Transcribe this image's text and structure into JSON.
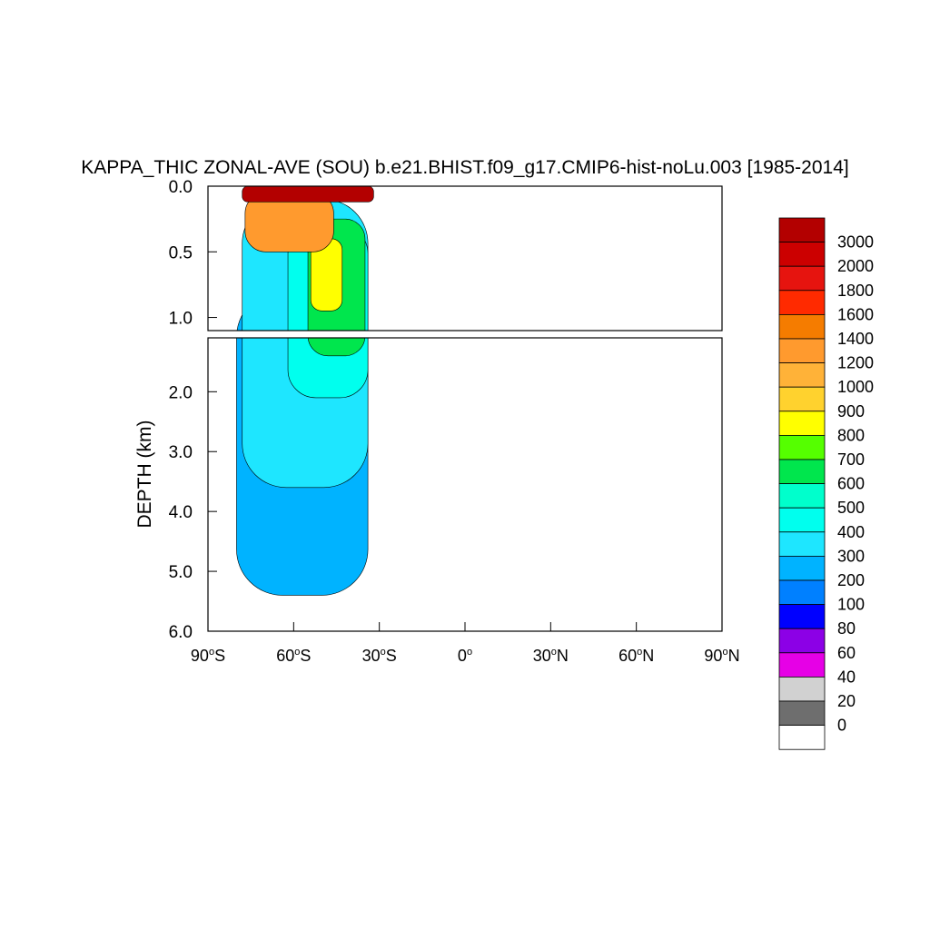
{
  "chart_data": {
    "type": "heatmap",
    "title": "KAPPA_THIC ZONAL-AVE (SOU) b.e21.BHIST.f09_g17.CMIP6-hist-noLu.003 [1985-2014]",
    "ylabel": "DEPTH (km)",
    "xlabel": "",
    "xlim": [
      -90,
      90
    ],
    "ylim_upper": [
      0.0,
      1.1
    ],
    "ylim_lower": [
      1.1,
      6.0
    ],
    "x_ticks": [
      {
        "value": -90,
        "num": "90",
        "hemi": "S"
      },
      {
        "value": -60,
        "num": "60",
        "hemi": "S"
      },
      {
        "value": -30,
        "num": "30",
        "hemi": "S"
      },
      {
        "value": 0,
        "num": "0",
        "hemi": ""
      },
      {
        "value": 30,
        "num": "30",
        "hemi": "N"
      },
      {
        "value": 60,
        "num": "60",
        "hemi": "N"
      },
      {
        "value": 90,
        "num": "90",
        "hemi": "N"
      }
    ],
    "y_ticks_upper": [
      {
        "value": 0.0,
        "label": "0.0"
      },
      {
        "value": 0.5,
        "label": "0.5"
      },
      {
        "value": 1.0,
        "label": "1.0"
      }
    ],
    "y_ticks_lower": [
      {
        "value": 2.0,
        "label": "2.0"
      },
      {
        "value": 3.0,
        "label": "3.0"
      },
      {
        "value": 4.0,
        "label": "4.0"
      },
      {
        "value": 5.0,
        "label": "5.0"
      },
      {
        "value": 6.0,
        "label": "6.0"
      }
    ],
    "colorbar": {
      "labels": [
        "3000",
        "2000",
        "1800",
        "1600",
        "1400",
        "1200",
        "1000",
        "900",
        "800",
        "700",
        "600",
        "500",
        "400",
        "300",
        "200",
        "100",
        "80",
        "60",
        "40",
        "20",
        "0"
      ],
      "colors": [
        "#b30000",
        "#cc0000",
        "#e6140f",
        "#ff2a00",
        "#f57c00",
        "#ff9a2e",
        "#ffb238",
        "#ffd22e",
        "#ffff00",
        "#55ff00",
        "#00e64d",
        "#00ffcc",
        "#00ffee",
        "#1ee6ff",
        "#00b3ff",
        "#0080ff",
        "#0000ff",
        "#8c00e6",
        "#e600e6",
        "#d1d1d1",
        "#6e6e6e",
        "#ffffff"
      ]
    },
    "regions": [
      {
        "level": "200",
        "lat": [
          -80,
          -34
        ],
        "depth": [
          0.8,
          5.4
        ]
      },
      {
        "level": "300",
        "lat": [
          -78,
          -34
        ],
        "depth": [
          0.1,
          3.6
        ]
      },
      {
        "level": "400",
        "lat": [
          -62,
          -34
        ],
        "depth": [
          0.3,
          2.1
        ]
      },
      {
        "level": "600",
        "lat": [
          -55,
          -35
        ],
        "depth": [
          0.25,
          1.4
        ]
      },
      {
        "level": "800",
        "lat": [
          -54,
          -43
        ],
        "depth": [
          0.4,
          0.95
        ]
      },
      {
        "level": "1200",
        "lat": [
          -77,
          -46
        ],
        "depth": [
          0.05,
          0.5
        ]
      },
      {
        "level": "3000",
        "lat": [
          -78,
          -32
        ],
        "depth": [
          0.0,
          0.12
        ]
      }
    ]
  }
}
